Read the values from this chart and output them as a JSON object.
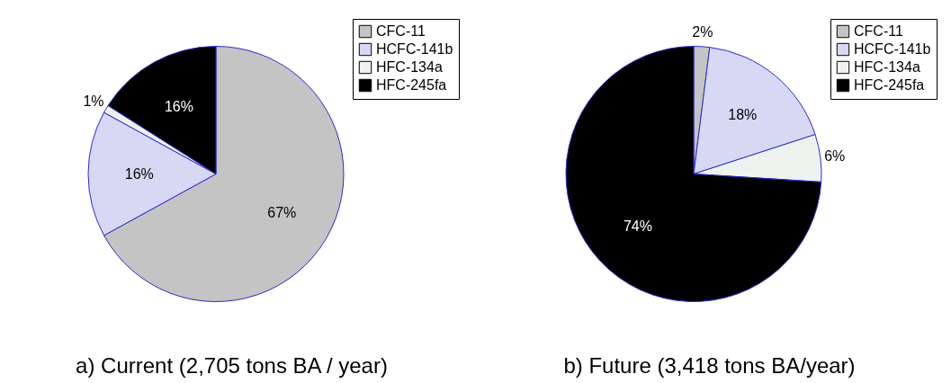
{
  "chart_data": [
    {
      "type": "pie",
      "title": "a) Current (2,705 tons BA / year)",
      "categories": [
        "CFC-11",
        "HCFC-141b",
        "HFC-134a",
        "HFC-245fa"
      ],
      "values": [
        67,
        16,
        1,
        16
      ],
      "value_labels": [
        "67%",
        "16%",
        "1%",
        "16%"
      ],
      "colors": [
        "#c4c4c4",
        "#d6d8f4",
        "#eef2ee",
        "#000000"
      ],
      "legend": "top right"
    },
    {
      "type": "pie",
      "title": "b) Future (3,418 tons BA/year)",
      "categories": [
        "CFC-11",
        "HCFC-141b",
        "HFC-134a",
        "HFC-245fa"
      ],
      "values": [
        2,
        18,
        6,
        74
      ],
      "value_labels": [
        "2%",
        "18%",
        "6%",
        "74%"
      ],
      "colors": [
        "#c4c4c4",
        "#d6d8f4",
        "#eef2ee",
        "#000000"
      ],
      "legend": "top right"
    }
  ]
}
